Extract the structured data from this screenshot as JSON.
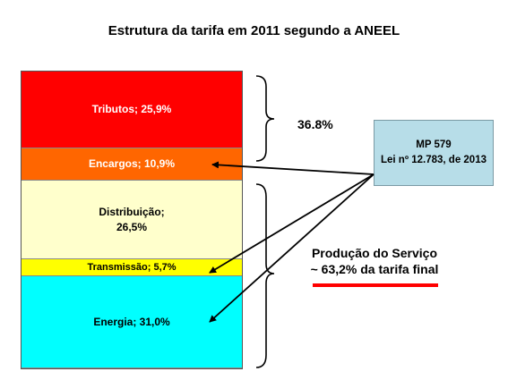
{
  "title": "Estrutura da tarifa em 2011 segundo a ANEEL",
  "chart_data": {
    "type": "bar",
    "orientation": "stacked-100",
    "title": "Estrutura da tarifa em 2011 segundo a ANEEL",
    "segments": [
      {
        "label": "Tributos; 25,9%",
        "value": 25.9,
        "color": "#ff0000"
      },
      {
        "label": "Encargos; 10,9%",
        "value": 10.9,
        "color": "#ff6600"
      },
      {
        "label": "Distribuição;\n26,5%",
        "value": 26.5,
        "color": "#ffffcc"
      },
      {
        "label": "Transmissão; 5,7%",
        "value": 5.7,
        "color": "#ffff00"
      },
      {
        "label": "Energia; 31,0%",
        "value": 31.0,
        "color": "#00ffff"
      }
    ],
    "grid": false,
    "legend": "none"
  },
  "annotations": {
    "taxes_total": "36.8%",
    "mp_box_line1": "MP 579",
    "mp_box_line2": "Lei nº 12.783, de 2013",
    "production_line1": "Produção do Serviço",
    "production_line2": "~ 63,2% da tarifa final",
    "accent_color": "#ff0000",
    "box_color": "#b7dde8"
  }
}
